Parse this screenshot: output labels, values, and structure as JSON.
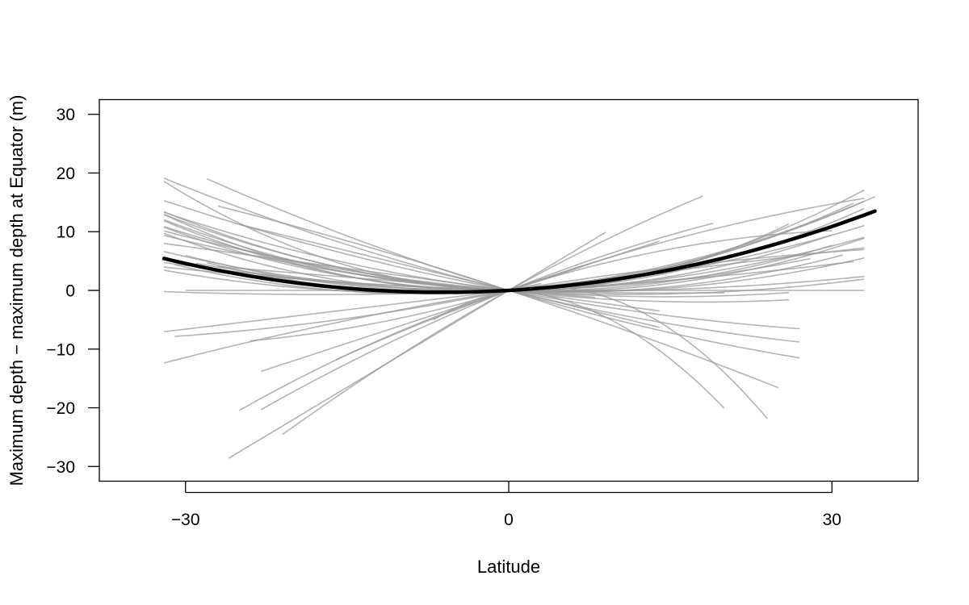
{
  "chart_data": {
    "type": "line",
    "title": "",
    "xlabel": "Latitude",
    "ylabel": "Maximum depth − maximum depth at Equator (m)",
    "xlim": [
      -38,
      38
    ],
    "ylim": [
      -32.5,
      32.5
    ],
    "x_ticks": [
      -30,
      0,
      30
    ],
    "x_tick_labels": [
      "−30",
      "0",
      "30"
    ],
    "y_ticks": [
      -30,
      -20,
      -10,
      0,
      10,
      20,
      30
    ],
    "y_tick_labels": [
      "−30",
      "−20",
      "−10",
      "0",
      "10",
      "20",
      "30"
    ],
    "grid": false,
    "legend": "none",
    "colors": {
      "individual": "#9a9a9a",
      "mean": "#000000"
    },
    "mean_curve": {
      "coeffs": [
        0.105,
        0.0086
      ],
      "x_range": [
        -32,
        34
      ]
    },
    "individual_curves": [
      {
        "coeffs": [
          -0.02,
          0.0175
        ],
        "x_range": [
          -32,
          26
        ]
      },
      {
        "coeffs": [
          0.05,
          0.0142
        ],
        "x_range": [
          -32,
          33
        ]
      },
      {
        "coeffs": [
          0.02,
          0.0122
        ],
        "x_range": [
          -32,
          33
        ]
      },
      {
        "coeffs": [
          0.08,
          0.012
        ],
        "x_range": [
          -32,
          32
        ]
      },
      {
        "coeffs": [
          0.0,
          0.0105
        ],
        "x_range": [
          -32,
          30
        ]
      },
      {
        "coeffs": [
          -0.05,
          0.0102
        ],
        "x_range": [
          -32,
          30
        ]
      },
      {
        "coeffs": [
          -0.08,
          0.0106
        ],
        "x_range": [
          -32,
          33
        ]
      },
      {
        "coeffs": [
          -0.1,
          0.0095
        ],
        "x_range": [
          -32,
          31
        ]
      },
      {
        "coeffs": [
          0.08,
          0.0093
        ],
        "x_range": [
          -30,
          32
        ]
      },
      {
        "coeffs": [
          0.12,
          0.0103
        ],
        "x_range": [
          -28,
          34
        ]
      },
      {
        "coeffs": [
          0.15,
          0.0094
        ],
        "x_range": [
          -31,
          33
        ]
      },
      {
        "coeffs": [
          0.03,
          0.0074
        ],
        "x_range": [
          -32,
          33
        ]
      },
      {
        "coeffs": [
          0.11,
          0.0068
        ],
        "x_range": [
          -32,
          33
        ]
      },
      {
        "coeffs": [
          0.02,
          0.0062
        ],
        "x_range": [
          -29,
          28
        ]
      },
      {
        "coeffs": [
          -0.09,
          0.0078
        ],
        "x_range": [
          -32,
          33
        ]
      },
      {
        "coeffs": [
          -0.12,
          0.0054
        ],
        "x_range": [
          -32,
          33
        ]
      },
      {
        "coeffs": [
          -0.15,
          0.0052
        ],
        "x_range": [
          -32,
          26
        ]
      },
      {
        "coeffs": [
          -0.22,
          0.0061
        ],
        "x_range": [
          -32,
          26
        ]
      },
      {
        "coeffs": [
          0.08,
          0.0023
        ],
        "x_range": [
          -32,
          32
        ]
      },
      {
        "coeffs": [
          -0.04,
          0.0034
        ],
        "x_range": [
          -32,
          33
        ]
      },
      {
        "coeffs": [
          0.0,
          0.0
        ],
        "x_range": [
          -30,
          33
        ]
      },
      {
        "coeffs": [
          -0.06,
          0.002
        ],
        "x_range": [
          -32,
          20
        ]
      },
      {
        "coeffs": [
          -0.45,
          0.0046
        ],
        "x_range": [
          -32,
          27
        ]
      },
      {
        "coeffs": [
          -0.35,
          0.004
        ],
        "x_range": [
          -32,
          27
        ]
      },
      {
        "coeffs": [
          -0.55,
          0.0046
        ],
        "x_range": [
          -28,
          27
        ]
      },
      {
        "coeffs": [
          -0.45,
          0.0
        ],
        "x_range": [
          -25,
          14
        ]
      },
      {
        "coeffs": [
          -0.6,
          -0.0025
        ],
        "x_range": [
          -27,
          25
        ]
      },
      {
        "coeffs": [
          0.3,
          -0.0027
        ],
        "x_range": [
          -32,
          33
        ]
      },
      {
        "coeffs": [
          0.22,
          0.0
        ],
        "x_range": [
          -32,
          33
        ]
      },
      {
        "coeffs": [
          0.6,
          0.0
        ],
        "x_range": [
          -23,
          14
        ]
      },
      {
        "coeffs": [
          0.55,
          0.008
        ],
        "x_range": [
          -24,
          7
        ]
      },
      {
        "coeffs": [
          0.73,
          -0.0067
        ],
        "x_range": [
          -23,
          19
        ]
      },
      {
        "coeffs": [
          0.65,
          -0.0053
        ],
        "x_range": [
          -16,
          33
        ]
      },
      {
        "coeffs": [
          0.6,
          -0.0087
        ],
        "x_range": [
          -25,
          30
        ]
      },
      {
        "coeffs": [
          1.1,
          0.0
        ],
        "x_range": [
          -26,
          9
        ]
      },
      {
        "coeffs": [
          1.02,
          -0.0071
        ],
        "x_range": [
          -21,
          18
        ]
      },
      {
        "coeffs": [
          0.35,
          -0.0525
        ],
        "x_range": [
          -7,
          24
        ]
      },
      {
        "coeffs": [
          -0.1,
          -0.0452
        ],
        "x_range": [
          -5,
          20
        ]
      },
      {
        "coeffs": [
          0.38,
          0.0041
        ],
        "x_range": [
          -31,
          3
        ]
      },
      {
        "coeffs": [
          -0.25,
          0.0
        ],
        "x_range": [
          -32,
          14
        ]
      },
      {
        "coeffs": [
          -0.15,
          0.0
        ],
        "x_range": [
          -27,
          8
        ]
      }
    ]
  }
}
